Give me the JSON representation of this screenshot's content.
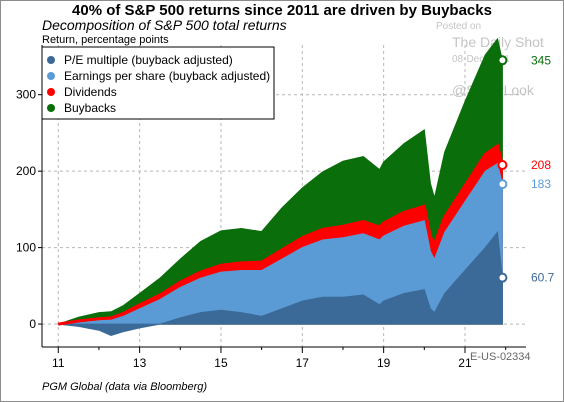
{
  "title": "40% of S&P 500 returns since 2011 are driven by Buybacks",
  "subtitle": "Decomposition of S&P 500 total returns",
  "source": "PGM Global (data via Bloomberg)",
  "chart_code": "E-US-02334",
  "watermark": {
    "posted": "Posted on",
    "name": "The Daily Shot",
    "date": "08-Dec-2021",
    "handle": "@SoberLook"
  },
  "chart_data": {
    "type": "area",
    "stacked": true,
    "ylabel": "Return, percentage points",
    "xlabel": "",
    "x_ticks": [
      11,
      13,
      15,
      17,
      19,
      21
    ],
    "x_tick_labels": [
      "11",
      "13",
      "15",
      "17",
      "19",
      "21"
    ],
    "xlim": [
      10.6,
      22.5
    ],
    "y_ticks": [
      0,
      100,
      200,
      300
    ],
    "y_tick_labels": [
      "0",
      "100",
      "200",
      "300"
    ],
    "ylim": [
      -30,
      365
    ],
    "grid": true,
    "legend_position": "top-left",
    "x": [
      11.0,
      11.5,
      12.0,
      12.3,
      12.6,
      13.0,
      13.5,
      14.0,
      14.5,
      15.0,
      15.5,
      16.0,
      16.5,
      17.0,
      17.5,
      18.0,
      18.5,
      18.9,
      19.0,
      19.5,
      20.0,
      20.15,
      20.25,
      20.5,
      21.0,
      21.5,
      21.8,
      21.92
    ],
    "series": [
      {
        "name": "P/E multiple (buyback adjusted)",
        "color": "#3b6a98",
        "end_value": 60.7,
        "end_label": "60.7",
        "values": [
          0,
          -3,
          -8,
          -15,
          -10,
          -5,
          0,
          8,
          15,
          18,
          15,
          10,
          20,
          30,
          35,
          35,
          38,
          25,
          30,
          40,
          45,
          20,
          15,
          40,
          70,
          100,
          120,
          60.7
        ]
      },
      {
        "name": "Earnings per share (buyback adjusted)",
        "color": "#5b9bd5",
        "end_value": 183,
        "end_label": "183",
        "values": [
          0,
          6,
          13,
          20,
          20,
          25,
          32,
          40,
          45,
          50,
          55,
          60,
          65,
          70,
          75,
          78,
          80,
          85,
          85,
          88,
          90,
          75,
          70,
          80,
          90,
          100,
          90,
          122.3
        ]
      },
      {
        "name": "Dividends",
        "color": "#ff0000",
        "end_value": 208,
        "end_label": "208",
        "values": [
          0,
          1,
          2,
          3,
          4,
          5,
          6,
          7,
          8,
          9,
          10,
          11,
          12,
          13,
          14,
          15,
          16,
          17,
          17,
          18,
          19,
          19,
          20,
          20,
          21,
          22,
          23,
          25
        ]
      },
      {
        "name": "Buybacks",
        "color": "#0a6e0a",
        "end_value": 345,
        "end_label": "345",
        "values": [
          0,
          5,
          8,
          8,
          10,
          15,
          22,
          30,
          40,
          45,
          45,
          40,
          55,
          65,
          75,
          85,
          85,
          75,
          80,
          90,
          100,
          70,
          60,
          85,
          110,
          130,
          140,
          137
        ]
      }
    ]
  }
}
